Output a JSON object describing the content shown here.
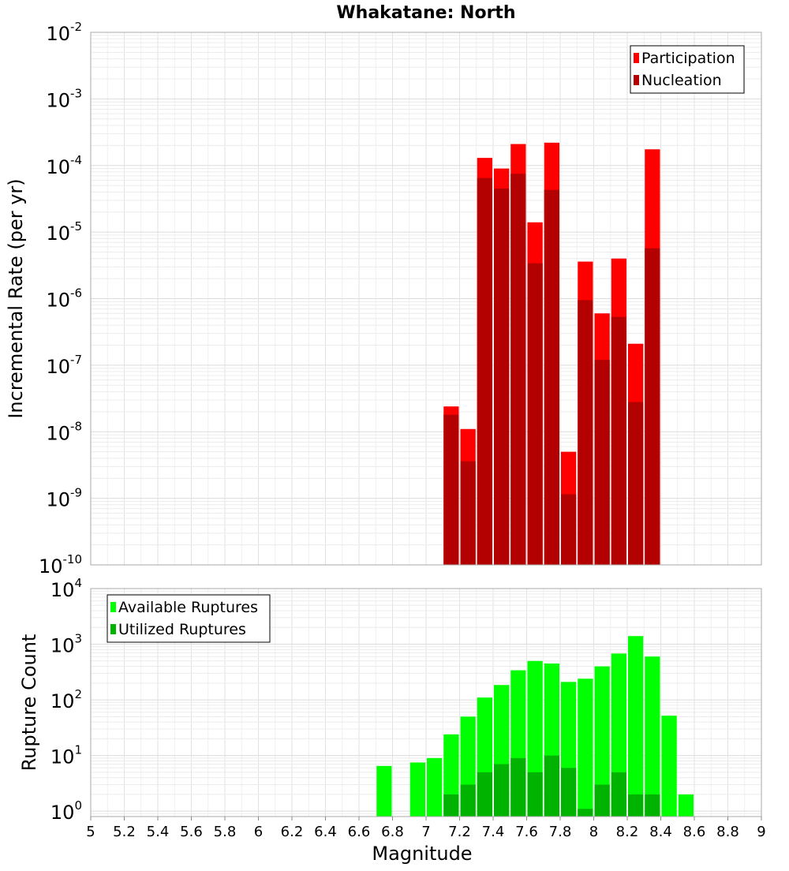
{
  "chart_data": [
    {
      "type": "bar",
      "title": "Whakatane: North",
      "xlabel": "",
      "ylabel": "Incremental Rate (per yr)",
      "yscale": "log",
      "ylim": [
        1e-10,
        0.01
      ],
      "y_ticks": [
        {
          "base": "10",
          "exp": "-10",
          "value": 1e-10
        },
        {
          "base": "10",
          "exp": "-9",
          "value": 1e-09
        },
        {
          "base": "10",
          "exp": "-8",
          "value": 1e-08
        },
        {
          "base": "10",
          "exp": "-7",
          "value": 1e-07
        },
        {
          "base": "10",
          "exp": "-6",
          "value": 1e-06
        },
        {
          "base": "10",
          "exp": "-5",
          "value": 1e-05
        },
        {
          "base": "10",
          "exp": "-4",
          "value": 0.0001
        },
        {
          "base": "10",
          "exp": "-3",
          "value": 0.001
        },
        {
          "base": "10",
          "exp": "-2",
          "value": 0.01
        }
      ],
      "xlim": [
        5,
        9
      ],
      "x": [
        7.15,
        7.25,
        7.35,
        7.45,
        7.55,
        7.65,
        7.75,
        7.85,
        7.95,
        8.05,
        8.15,
        8.25,
        8.35
      ],
      "series": [
        {
          "name": "Participation",
          "color": "#ff0000",
          "values": [
            2.4e-08,
            1.1e-08,
            0.00013,
            9e-05,
            0.00021,
            1.4e-05,
            0.00022,
            5e-09,
            3.6e-06,
            6e-07,
            4e-06,
            2.1e-07,
            0.000175
          ]
        },
        {
          "name": "Nucleation",
          "color": "#b30000",
          "values": [
            1.8e-08,
            3.6e-09,
            6.5e-05,
            4.5e-05,
            7.5e-05,
            3.4e-06,
            4.3e-05,
            1.15e-09,
            9.5e-07,
            1.2e-07,
            5.3e-07,
            2.8e-08,
            5.7e-06
          ]
        }
      ],
      "legend": "top-right",
      "grid": true
    },
    {
      "type": "bar",
      "title": "",
      "xlabel": "Magnitude",
      "ylabel": "Rupture Count",
      "yscale": "log",
      "ylim": [
        0.8,
        10000
      ],
      "y_ticks": [
        {
          "base": "10",
          "exp": "0",
          "value": 1
        },
        {
          "base": "10",
          "exp": "1",
          "value": 10
        },
        {
          "base": "10",
          "exp": "2",
          "value": 100
        },
        {
          "base": "10",
          "exp": "3",
          "value": 1000
        },
        {
          "base": "10",
          "exp": "4",
          "value": 10000
        }
      ],
      "xlim": [
        5,
        9
      ],
      "x_ticks": [
        "5",
        "5.2",
        "5.4",
        "5.6",
        "5.8",
        "6",
        "6.2",
        "6.4",
        "6.6",
        "6.8",
        "7",
        "7.2",
        "7.4",
        "7.6",
        "7.8",
        "8",
        "8.2",
        "8.4",
        "8.6",
        "8.8",
        "9"
      ],
      "x": [
        6.75,
        6.95,
        7.05,
        7.15,
        7.25,
        7.35,
        7.45,
        7.55,
        7.65,
        7.75,
        7.85,
        7.95,
        8.05,
        8.15,
        8.25,
        8.35,
        8.45,
        8.55
      ],
      "series": [
        {
          "name": "Available Ruptures",
          "color": "#00ff00",
          "values": [
            6.5,
            7.5,
            9,
            24,
            50,
            110,
            185,
            340,
            500,
            450,
            210,
            240,
            400,
            680,
            1400,
            600,
            52,
            2
          ]
        },
        {
          "name": "Utilized Ruptures",
          "color": "#00b300",
          "values": [
            null,
            null,
            null,
            2,
            3,
            5,
            7,
            9,
            5,
            10,
            6,
            1.1,
            3,
            5,
            2,
            2,
            null,
            null
          ]
        }
      ],
      "legend": "top-left",
      "grid": true
    }
  ]
}
